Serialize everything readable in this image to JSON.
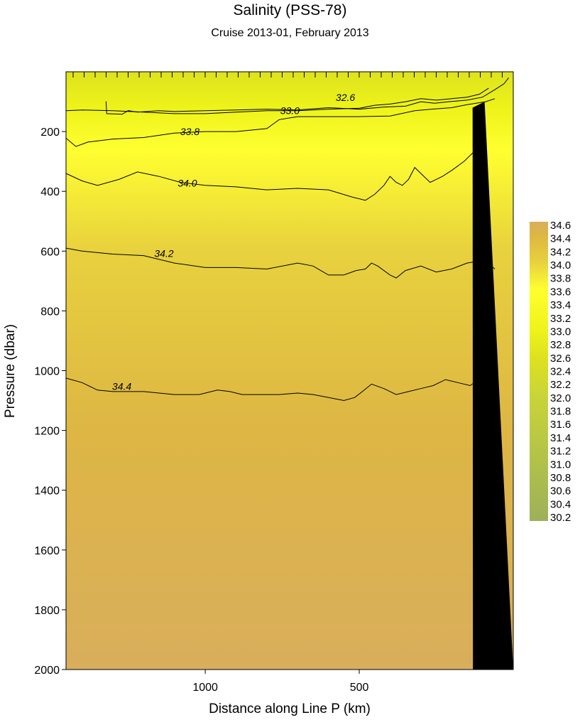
{
  "chart_data": {
    "type": "heatmap",
    "title": "Salinity  (PSS-78)",
    "subtitle": "Cruise 2013-01,  February 2013",
    "xlabel": "Distance along Line P  (km)",
    "ylabel": "Pressure  (dbar)",
    "x_reversed": true,
    "xlim": [
      1452,
      0
    ],
    "ylim": [
      2000,
      0
    ],
    "x_ticks": [
      "1000",
      "500"
    ],
    "x_tick_values": [
      1000,
      500
    ],
    "y_ticks": [
      "200",
      "400",
      "600",
      "800",
      "1000",
      "1200",
      "1400",
      "1600",
      "1800",
      "2000"
    ],
    "y_tick_values": [
      200,
      400,
      600,
      800,
      1000,
      1200,
      1400,
      1600,
      1800,
      2000
    ],
    "colorbar": {
      "labels": [
        "34.6",
        "34.4",
        "34.2",
        "34.0",
        "33.8",
        "33.6",
        "33.4",
        "33.2",
        "33.0",
        "32.8",
        "32.6",
        "32.4",
        "32.2",
        "32.0",
        "31.8",
        "31.6",
        "31.4",
        "31.2",
        "31.0",
        "30.8",
        "30.6",
        "30.4",
        "30.2"
      ],
      "min": 30.2,
      "max": 34.6,
      "colors": {
        "30.2": "#9db05a",
        "31.0": "#b0c04a",
        "32.0": "#c8d33a",
        "32.6": "#dde21e",
        "33.0": "#eef31a",
        "33.6": "#ffff30",
        "34.0": "#e8d13e",
        "34.4": "#ddb644",
        "34.6": "#d9ae5c"
      }
    },
    "contours": [
      {
        "label": "32.6",
        "points": [
          [
            1322,
            99
          ],
          [
            1320,
            140
          ],
          [
            1270,
            142
          ],
          [
            1250,
            130
          ],
          [
            1220,
            135
          ],
          [
            1150,
            130
          ],
          [
            1100,
            133
          ],
          [
            1000,
            130
          ],
          [
            900,
            128
          ],
          [
            800,
            125
          ],
          [
            700,
            128
          ],
          [
            600,
            120
          ],
          [
            500,
            125
          ],
          [
            420,
            118
          ],
          [
            350,
            115
          ],
          [
            300,
            100
          ],
          [
            255,
            105
          ],
          [
            210,
            100
          ],
          [
            150,
            95
          ],
          [
            100,
            85
          ],
          [
            60,
            60
          ],
          [
            30,
            40
          ],
          [
            15,
            20
          ]
        ],
        "label_at": [
          545,
          88
        ]
      },
      {
        "label": "33.0",
        "points": [
          [
            1452,
            130
          ],
          [
            1400,
            128
          ],
          [
            1300,
            130
          ],
          [
            1200,
            135
          ],
          [
            1100,
            140
          ],
          [
            1000,
            140
          ],
          [
            900,
            135
          ],
          [
            800,
            130
          ],
          [
            700,
            130
          ],
          [
            600,
            125
          ],
          [
            500,
            122
          ],
          [
            450,
            112
          ],
          [
            400,
            108
          ],
          [
            350,
            100
          ],
          [
            300,
            90
          ],
          [
            250,
            95
          ],
          [
            200,
            90
          ],
          [
            150,
            85
          ],
          [
            110,
            75
          ],
          [
            80,
            55
          ]
        ],
        "label_at": [
          725,
          132
        ]
      },
      {
        "label": "33.8",
        "points": [
          [
            1452,
            222
          ],
          [
            1420,
            250
          ],
          [
            1380,
            235
          ],
          [
            1300,
            225
          ],
          [
            1200,
            220
          ],
          [
            1100,
            205
          ],
          [
            1000,
            200
          ],
          [
            900,
            200
          ],
          [
            800,
            190
          ],
          [
            760,
            160
          ],
          [
            700,
            150
          ],
          [
            600,
            150
          ],
          [
            500,
            150
          ],
          [
            400,
            148
          ],
          [
            320,
            130
          ],
          [
            265,
            125
          ],
          [
            200,
            120
          ],
          [
            150,
            110
          ],
          [
            90,
            100
          ],
          [
            60,
            90
          ]
        ],
        "label_at": [
          1050,
          202
        ]
      },
      {
        "label": "34.0",
        "points": [
          [
            1452,
            340
          ],
          [
            1400,
            365
          ],
          [
            1350,
            380
          ],
          [
            1280,
            360
          ],
          [
            1220,
            335
          ],
          [
            1150,
            350
          ],
          [
            1080,
            370
          ],
          [
            1000,
            380
          ],
          [
            900,
            385
          ],
          [
            800,
            395
          ],
          [
            700,
            390
          ],
          [
            600,
            395
          ],
          [
            520,
            420
          ],
          [
            480,
            430
          ],
          [
            450,
            410
          ],
          [
            420,
            380
          ],
          [
            400,
            350
          ],
          [
            380,
            370
          ],
          [
            360,
            380
          ],
          [
            340,
            360
          ],
          [
            320,
            320
          ],
          [
            300,
            340
          ],
          [
            270,
            370
          ],
          [
            230,
            350
          ],
          [
            200,
            330
          ],
          [
            160,
            300
          ],
          [
            130,
            270
          ],
          [
            110,
            300
          ],
          [
            85,
            350
          ]
        ],
        "label_at": [
          1058,
          375
        ]
      },
      {
        "label": "34.2",
        "points": [
          [
            1452,
            590
          ],
          [
            1400,
            600
          ],
          [
            1300,
            610
          ],
          [
            1200,
            615
          ],
          [
            1100,
            640
          ],
          [
            1000,
            655
          ],
          [
            900,
            655
          ],
          [
            800,
            660
          ],
          [
            700,
            640
          ],
          [
            650,
            650
          ],
          [
            600,
            680
          ],
          [
            550,
            680
          ],
          [
            510,
            665
          ],
          [
            480,
            660
          ],
          [
            460,
            640
          ],
          [
            440,
            650
          ],
          [
            400,
            680
          ],
          [
            380,
            690
          ],
          [
            350,
            665
          ],
          [
            300,
            650
          ],
          [
            250,
            670
          ],
          [
            200,
            660
          ],
          [
            150,
            640
          ],
          [
            90,
            630
          ],
          [
            60,
            660
          ]
        ],
        "label_at": [
          1134,
          610
        ]
      },
      {
        "label": "34.4",
        "points": [
          [
            1452,
            1025
          ],
          [
            1400,
            1040
          ],
          [
            1350,
            1065
          ],
          [
            1300,
            1070
          ],
          [
            1200,
            1070
          ],
          [
            1100,
            1080
          ],
          [
            1020,
            1080
          ],
          [
            960,
            1065
          ],
          [
            920,
            1070
          ],
          [
            880,
            1080
          ],
          [
            820,
            1080
          ],
          [
            760,
            1080
          ],
          [
            700,
            1075
          ],
          [
            650,
            1080
          ],
          [
            600,
            1090
          ],
          [
            550,
            1100
          ],
          [
            515,
            1090
          ],
          [
            490,
            1070
          ],
          [
            460,
            1045
          ],
          [
            420,
            1060
          ],
          [
            380,
            1080
          ],
          [
            340,
            1070
          ],
          [
            300,
            1060
          ],
          [
            260,
            1050
          ],
          [
            220,
            1030
          ],
          [
            180,
            1040
          ],
          [
            140,
            1050
          ],
          [
            100,
            1020
          ],
          [
            70,
            1000
          ]
        ],
        "label_at": [
          1271,
          1055
        ]
      }
    ],
    "bottom_mask": [
      [
        132,
        120
      ],
      [
        93,
        100
      ],
      [
        0,
        2000
      ],
      [
        131,
        2000
      ]
    ]
  }
}
